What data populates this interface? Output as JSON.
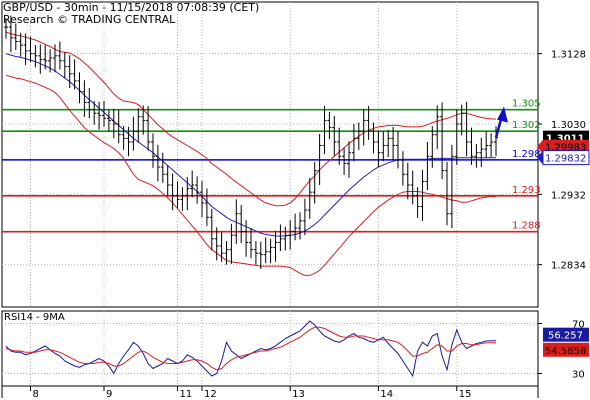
{
  "header": {
    "title": "GBP/USD - 30min - 11/15/2018 07:08:39 (CET)",
    "source": "Research © TRADING CENTRAL"
  },
  "colors": {
    "support": "#d81e1e",
    "resistance": "#109010",
    "pivot": "#0000d0",
    "price": "#000000",
    "bollinger": "#d81e1e",
    "ma": "#2020c0",
    "rsi": "#1a1aa0",
    "rsi_ma": "#d81e1e",
    "arrow": "#1010c0"
  },
  "chart_data": [
    {
      "type": "candlestick",
      "title": "GBP/USD - 30min",
      "ylim": [
        1.2775,
        1.32
      ],
      "y_ticks": [
        "1.3128",
        "1.3030",
        "1.2932",
        "1.2834"
      ],
      "x_ticks": [
        "8",
        "9",
        "11",
        "12",
        "13",
        "14",
        "15"
      ],
      "x_tick_index": [
        5,
        20,
        35,
        40,
        58,
        76,
        92
      ],
      "index_range": [
        0,
        100
      ],
      "levels": [
        {
          "value": 1.305,
          "label": "1.305",
          "role": "resistance"
        },
        {
          "value": 1.302,
          "label": "1.302",
          "role": "resistance"
        },
        {
          "value": 1.298,
          "label": "1.298",
          "role": "pivot"
        },
        {
          "value": 1.293,
          "label": "1.293",
          "role": "support"
        },
        {
          "value": 1.288,
          "label": "1.288",
          "role": "support"
        }
      ],
      "price_boxes": [
        {
          "value": 1.3011,
          "label": "1.3011",
          "style": "last"
        },
        {
          "value": 1.29983,
          "label": "1.29983",
          "style": "upper"
        },
        {
          "value": 1.29832,
          "label": "1.29832",
          "style": "ma"
        }
      ],
      "close": [
        1.3165,
        1.315,
        1.3145,
        1.314,
        1.3132,
        1.3128,
        1.3125,
        1.312,
        1.3118,
        1.3122,
        1.3125,
        1.3118,
        1.311,
        1.31,
        1.309,
        1.3075,
        1.306,
        1.305,
        1.3045,
        1.3042,
        1.3038,
        1.3035,
        1.303,
        1.3015,
        1.301,
        1.3005,
        1.302,
        1.304,
        1.3035,
        1.3005,
        1.2985,
        1.297,
        1.296,
        1.2945,
        1.293,
        1.2925,
        1.293,
        1.294,
        1.2945,
        1.2935,
        1.292,
        1.29,
        1.287,
        1.286,
        1.285,
        1.2855,
        1.2875,
        1.2905,
        1.288,
        1.2865,
        1.2855,
        1.285,
        1.2848,
        1.2852,
        1.2858,
        1.2865,
        1.287,
        1.2875,
        1.288,
        1.2885,
        1.2895,
        1.291,
        1.2935,
        1.2965,
        1.3,
        1.3035,
        1.3025,
        1.3005,
        1.2985,
        1.2975,
        1.299,
        1.301,
        1.302,
        1.3035,
        1.302,
        1.3005,
        1.299,
        1.3,
        1.301,
        1.3,
        1.298,
        1.296,
        1.2945,
        1.293,
        1.2915,
        1.295,
        1.2985,
        1.3015,
        1.304,
        1.2965,
        1.2905,
        1.2985,
        1.303,
        1.3045,
        1.3005,
        1.2985,
        1.299,
        1.2995,
        1.3,
        1.3005,
        1.3011
      ],
      "ma": [
        1.3128,
        1.3126,
        1.3124,
        1.3123,
        1.3121,
        1.3119,
        1.3117,
        1.3114,
        1.3111,
        1.3108,
        1.3104,
        1.3099,
        1.3094,
        1.3089,
        1.3083,
        1.3077,
        1.307,
        1.3064,
        1.3058,
        1.3052,
        1.3046,
        1.304,
        1.3034,
        1.3028,
        1.3022,
        1.3016,
        1.301,
        1.3005,
        1.3,
        1.2995,
        1.299,
        1.2984,
        1.2978,
        1.2972,
        1.2966,
        1.296,
        1.2954,
        1.2948,
        1.2942,
        1.2936,
        1.2929,
        1.2922,
        1.2915,
        1.291,
        1.2905,
        1.29,
        1.2896,
        1.2893,
        1.289,
        1.2887,
        1.2884,
        1.2881,
        1.2878,
        1.2876,
        1.2875,
        1.2874,
        1.2874,
        1.2874,
        1.2875,
        1.2876,
        1.2878,
        1.2881,
        1.2885,
        1.289,
        1.2896,
        1.2903,
        1.291,
        1.2917,
        1.2924,
        1.2931,
        1.2938,
        1.2944,
        1.295,
        1.2956,
        1.2961,
        1.2966,
        1.297,
        1.2973,
        1.2976,
        1.2978,
        1.298,
        1.2981,
        1.2981,
        1.2981,
        1.2981,
        1.2981,
        1.2981,
        1.2982,
        1.2982,
        1.2982,
        1.2982,
        1.2982,
        1.2983,
        1.2983,
        1.2983,
        1.2983,
        1.2983,
        1.2983,
        1.2983,
        1.2983,
        1.2983
      ],
      "band_width": [
        0.003,
        0.003,
        0.003,
        0.003,
        0.003,
        0.003,
        0.003,
        0.003,
        0.003,
        0.003,
        0.003,
        0.0032,
        0.0036,
        0.004,
        0.0042,
        0.0044,
        0.0045,
        0.0045,
        0.0044,
        0.0043,
        0.0042,
        0.004,
        0.0038,
        0.0038,
        0.004,
        0.0045,
        0.005,
        0.0052,
        0.005,
        0.0048,
        0.0046,
        0.0045,
        0.0045,
        0.0045,
        0.0046,
        0.0048,
        0.005,
        0.0052,
        0.0054,
        0.0056,
        0.0058,
        0.006,
        0.006,
        0.006,
        0.006,
        0.006,
        0.0058,
        0.0056,
        0.0054,
        0.0052,
        0.005,
        0.0048,
        0.0046,
        0.0044,
        0.0043,
        0.0042,
        0.0042,
        0.0043,
        0.0045,
        0.005,
        0.0056,
        0.0062,
        0.0066,
        0.0068,
        0.007,
        0.007,
        0.0069,
        0.0068,
        0.0067,
        0.0066,
        0.0065,
        0.0064,
        0.0063,
        0.0062,
        0.006,
        0.0058,
        0.0056,
        0.0054,
        0.0052,
        0.005,
        0.0048,
        0.0046,
        0.0045,
        0.0045,
        0.0045,
        0.0046,
        0.0048,
        0.005,
        0.0052,
        0.0054,
        0.0056,
        0.0058,
        0.006,
        0.0062,
        0.0062,
        0.006,
        0.0058,
        0.0056,
        0.0055,
        0.0054,
        0.0054
      ]
    },
    {
      "type": "line",
      "title": "RSI14 - 9MA",
      "ylim": [
        20,
        80
      ],
      "y_ticks": [
        "70",
        "30"
      ],
      "level_lines": [
        70,
        30
      ],
      "value_boxes": [
        {
          "value": 56.257,
          "label": "56.257",
          "series": "rsi"
        },
        {
          "value": 54.5858,
          "label": "54.5858",
          "series": "rsi_ma"
        }
      ],
      "series": [
        {
          "key": "rsi",
          "values": [
            52,
            48,
            47,
            47,
            45,
            46,
            48,
            50,
            52,
            49,
            46,
            44,
            40,
            38,
            36,
            35,
            37,
            38,
            40,
            42,
            40,
            36,
            30,
            38,
            44,
            49,
            55,
            52,
            46,
            38,
            34,
            36,
            38,
            42,
            40,
            38,
            40,
            45,
            43,
            40,
            36,
            32,
            28,
            30,
            40,
            55,
            48,
            45,
            42,
            44,
            46,
            48,
            50,
            49,
            50,
            52,
            55,
            58,
            60,
            62,
            64,
            68,
            72,
            69,
            64,
            60,
            58,
            56,
            55,
            57,
            60,
            62,
            59,
            58,
            56,
            55,
            57,
            59,
            54,
            50,
            46,
            40,
            34,
            28,
            48,
            55,
            52,
            60,
            62,
            44,
            33,
            53,
            65,
            55,
            50,
            52,
            54,
            55,
            56,
            56.257,
            56.257
          ]
        },
        {
          "key": "rsi_ma",
          "values": [
            50,
            49,
            48,
            48,
            47,
            47,
            47,
            48,
            49,
            49,
            48,
            47,
            45,
            43,
            41,
            39,
            38,
            38,
            38,
            39,
            39,
            38,
            36,
            36,
            38,
            41,
            44,
            47,
            48,
            46,
            43,
            41,
            39,
            38,
            38,
            38,
            39,
            40,
            41,
            41,
            40,
            38,
            35,
            33,
            34,
            38,
            41,
            43,
            44,
            45,
            46,
            47,
            48,
            48,
            49,
            50,
            51,
            53,
            55,
            57,
            59,
            62,
            65,
            67,
            67,
            66,
            64,
            62,
            60,
            59,
            59,
            60,
            60,
            60,
            59,
            58,
            57,
            57,
            57,
            56,
            55,
            52,
            48,
            44,
            44,
            46,
            47,
            50,
            53,
            52,
            48,
            48,
            52,
            54,
            54,
            53,
            53,
            54,
            54.5,
            54.5858,
            54.5858
          ]
        }
      ]
    }
  ]
}
